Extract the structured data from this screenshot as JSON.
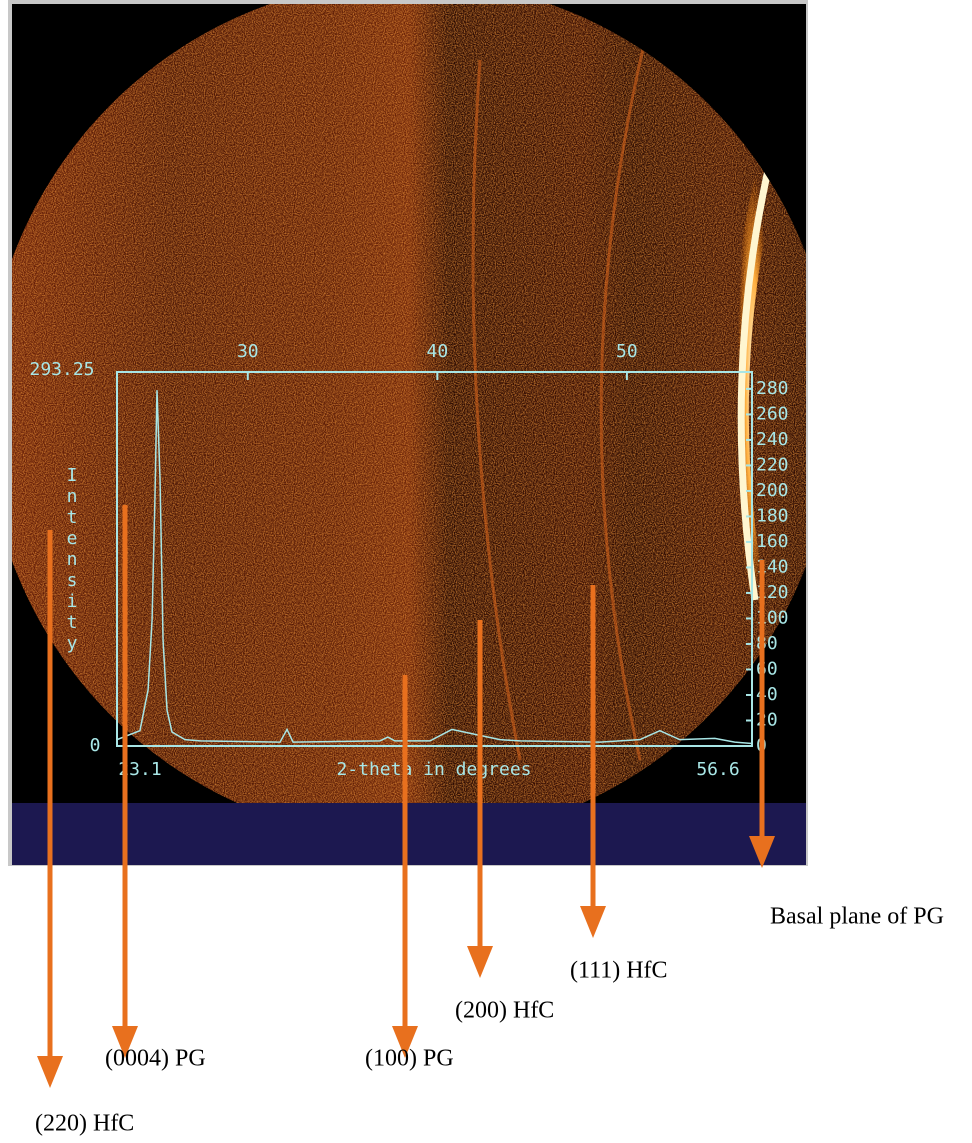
{
  "chart_data": {
    "type": "line",
    "x_label": "2-theta in degrees",
    "y_label": "Intensity",
    "xlim": [
      23.1,
      56.6
    ],
    "ylim": [
      0,
      293.25
    ],
    "xticks": [
      30,
      40,
      50
    ],
    "yticks": [
      0,
      20,
      40,
      60,
      80,
      100,
      120,
      140,
      160,
      180,
      200,
      220,
      240,
      260,
      280
    ],
    "x": [
      23.1,
      24.31,
      24.74,
      24.95,
      25.1,
      25.21,
      25.37,
      25.53,
      25.74,
      26.0,
      26.69,
      27.48,
      31.7,
      32.07,
      32.39,
      36.97,
      37.39,
      37.76,
      39.61,
      40.77,
      41.72,
      43.3,
      44.36,
      48.57,
      50.68,
      51.74,
      52.79,
      54.64,
      55.69,
      56.6
    ],
    "series": [
      {
        "name": "Intensity",
        "color": "#a8e6e6",
        "values": [
          5,
          12,
          44,
          99,
          193,
          279,
          209,
          83,
          28,
          11,
          5,
          4,
          3,
          13,
          3,
          4,
          7,
          4,
          4,
          13,
          10,
          5,
          4,
          3,
          5,
          12,
          5,
          6,
          3,
          2
        ]
      }
    ],
    "annotations": [
      "(220) HfC",
      "(0004) PG",
      "(100) PG",
      "(200) HfC",
      "(111) HfC",
      "Basal plane of PG"
    ]
  }
}
